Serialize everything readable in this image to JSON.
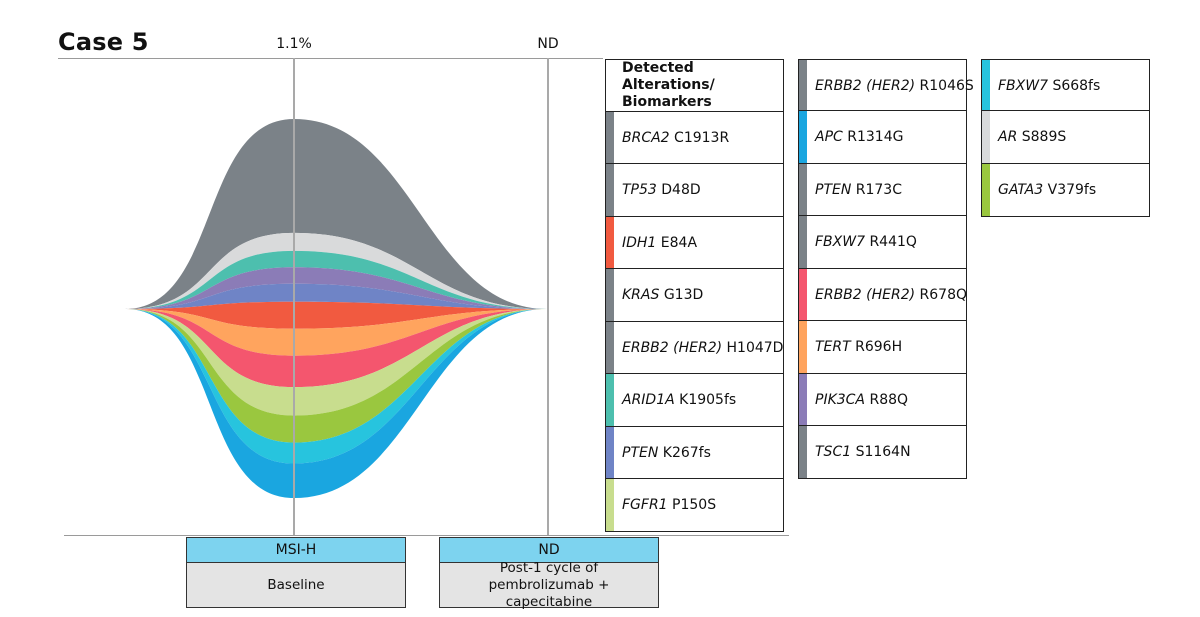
{
  "chart_data": {
    "type": "area",
    "title": "Case 5",
    "timepoints": [
      {
        "label": "1.1%",
        "status": "MSI-H",
        "description": "Baseline"
      },
      {
        "label": "ND",
        "status": "ND",
        "description": "Post-1 cycle of pembrolizumab + capecitabine"
      }
    ],
    "legend_header": "Detected Alterations/ Biomarkers",
    "series": [
      {
        "gene": "BRCA2",
        "variant": "C1913R",
        "color": "#7b8288",
        "values": [
          38,
          0
        ]
      },
      {
        "gene": "TP53",
        "variant": "D48D",
        "color": "#7b8288",
        "values": [
          0,
          0
        ]
      },
      {
        "gene": "IDH1",
        "variant": "E84A",
        "color": "#f15a40",
        "values": [
          0,
          0
        ]
      },
      {
        "gene": "KRAS",
        "variant": "G13D",
        "color": "#7b8288",
        "values": [
          0,
          0
        ]
      },
      {
        "gene": "ERBB2 (HER2)",
        "variant": "H1047D",
        "color": "#7b8288",
        "values": [
          0,
          0
        ]
      },
      {
        "gene": "ARID1A",
        "variant": "K1905fs",
        "color": "#4dbfae",
        "values": [
          0,
          0
        ]
      },
      {
        "gene": "PTEN",
        "variant": "K267fs",
        "color": "#6f84c6",
        "values": [
          0,
          0
        ]
      },
      {
        "gene": "FGFR1",
        "variant": "P150S",
        "color": "#c8dd8e",
        "values": [
          0,
          0
        ]
      },
      {
        "gene": "ERBB2 (HER2)",
        "variant": "R1046S",
        "color": "#7b8288",
        "values": [
          0,
          0
        ]
      },
      {
        "gene": "APC",
        "variant": "R1314G",
        "color": "#1aa6e0",
        "values": [
          0,
          0
        ]
      },
      {
        "gene": "PTEN",
        "variant": "R173C",
        "color": "#7b8288",
        "values": [
          0,
          0
        ]
      },
      {
        "gene": "FBXW7",
        "variant": "R441Q",
        "color": "#7b8288",
        "values": [
          0,
          0
        ]
      },
      {
        "gene": "ERBB2 (HER2)",
        "variant": "R678Q",
        "color": "#f4566e",
        "values": [
          0,
          0
        ]
      },
      {
        "gene": "TERT",
        "variant": "R696H",
        "color": "#ffa45e",
        "values": [
          0,
          0
        ]
      },
      {
        "gene": "PIK3CA",
        "variant": "R88Q",
        "color": "#8b7cb7",
        "values": [
          0,
          0
        ]
      },
      {
        "gene": "TSC1",
        "variant": "S1164N",
        "color": "#7b8288",
        "values": [
          0,
          0
        ]
      },
      {
        "gene": "FBXW7",
        "variant": "S668fs",
        "color": "#27c4de",
        "values": [
          0,
          0
        ]
      },
      {
        "gene": "AR",
        "variant": "S889S",
        "color": "#d9dadb",
        "values": [
          0,
          0
        ]
      },
      {
        "gene": "GATA3",
        "variant": "V379fs",
        "color": "#9ac73f",
        "values": [
          0,
          0
        ]
      }
    ],
    "bands": [
      {
        "color": "#7b8288",
        "value": 38
      },
      {
        "color": "#d9dadb",
        "value": 6
      },
      {
        "color": "#4dbfae",
        "value": 5.5
      },
      {
        "color": "#8b7cb7",
        "value": 5.5
      },
      {
        "color": "#6f84c6",
        "value": 6
      },
      {
        "color": "#f15a40",
        "value": 9
      },
      {
        "color": "#ffa45e",
        "value": 9
      },
      {
        "color": "#f4566e",
        "value": 10.5
      },
      {
        "color": "#c8dd8e",
        "value": 9.5
      },
      {
        "color": "#9ac73f",
        "value": 9
      },
      {
        "color": "#27c4de",
        "value": 7
      },
      {
        "color": "#1aa6e0",
        "value": 11.5
      }
    ]
  }
}
